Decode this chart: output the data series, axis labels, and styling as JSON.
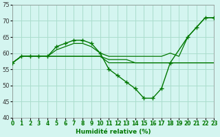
{
  "xlabel": "Humidité relative (%)",
  "xlim": [
    0,
    23
  ],
  "ylim": [
    40,
    75
  ],
  "yticks": [
    40,
    45,
    50,
    55,
    60,
    65,
    70,
    75
  ],
  "xticks": [
    0,
    1,
    2,
    3,
    4,
    5,
    6,
    7,
    8,
    9,
    10,
    11,
    12,
    13,
    14,
    15,
    16,
    17,
    18,
    19,
    20,
    21,
    22,
    23
  ],
  "bg_color": "#d4f5f0",
  "grid_color": "#aaddcc",
  "line_color": "#007700",
  "lines": [
    {
      "x": [
        0,
        1,
        2,
        3,
        4,
        5,
        6,
        7,
        8,
        9,
        10,
        11,
        12,
        13,
        14,
        15,
        16,
        17,
        18,
        20,
        21,
        22,
        23
      ],
      "y": [
        57,
        59,
        59,
        59,
        59,
        62,
        63,
        64,
        64,
        63,
        60,
        55,
        53,
        51,
        49,
        46,
        46,
        49,
        57,
        65,
        68,
        71,
        71
      ],
      "markers": true
    },
    {
      "x": [
        0,
        1,
        2,
        3,
        4,
        5,
        6,
        7,
        8,
        9,
        10,
        11,
        12,
        13,
        14,
        15,
        16,
        17,
        18,
        19,
        20,
        21,
        22,
        23
      ],
      "y": [
        57,
        59,
        59,
        59,
        59,
        61,
        62,
        63,
        63,
        62,
        60,
        59,
        59,
        59,
        59,
        59,
        59,
        59,
        60,
        59,
        65,
        68,
        71,
        71
      ],
      "markers": false
    },
    {
      "x": [
        0,
        1,
        2,
        3,
        4,
        5,
        6,
        7,
        8,
        9,
        10,
        11,
        12,
        13,
        14,
        15,
        16,
        17,
        18,
        19,
        20,
        21,
        22,
        23
      ],
      "y": [
        57,
        59,
        59,
        59,
        59,
        59,
        59,
        59,
        59,
        59,
        59,
        58,
        58,
        58,
        57,
        57,
        57,
        57,
        57,
        57,
        57,
        57,
        57,
        57
      ],
      "markers": false
    },
    {
      "x": [
        0,
        1,
        2,
        3,
        4,
        5,
        6,
        7,
        8,
        9,
        10,
        11,
        12,
        13,
        14,
        15,
        16,
        17,
        18,
        19,
        20,
        21,
        22,
        23
      ],
      "y": [
        57,
        59,
        59,
        59,
        59,
        59,
        59,
        59,
        59,
        59,
        59,
        57,
        57,
        57,
        57,
        57,
        57,
        57,
        57,
        57,
        57,
        57,
        57,
        57
      ],
      "markers": false
    }
  ]
}
